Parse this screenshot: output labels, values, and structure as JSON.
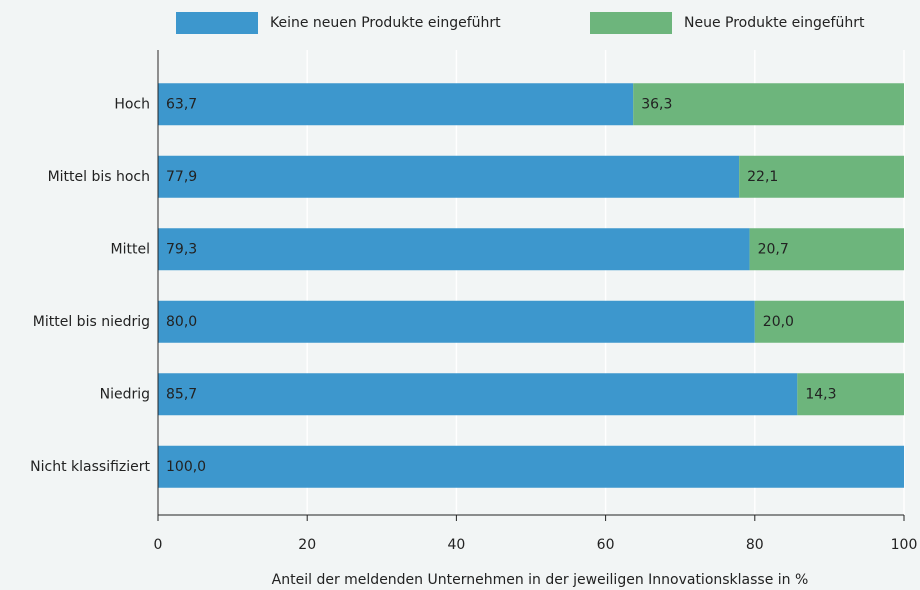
{
  "chart_data": {
    "type": "stacked-bar-horizontal",
    "x_label": "Anteil der meldenden Unternehmen in der jeweiligen Innovationsklasse in %",
    "categories": [
      "Hoch",
      "Mittel bis hoch",
      "Mittel",
      "Mittel bis niedrig",
      "Niedrig",
      "Nicht klassifiziert"
    ],
    "series": [
      {
        "name": "Keine neuen Produkte eingeführt",
        "color": "#3d97cd",
        "values": [
          63.7,
          77.9,
          79.3,
          80.0,
          85.7,
          100.0
        ],
        "value_labels": [
          "63,7",
          "77,9",
          "79,3",
          "80,0",
          "85,7",
          "100,0"
        ]
      },
      {
        "name": "Neue Produkte eingeführt",
        "color": "#6db57c",
        "values": [
          36.3,
          22.1,
          20.7,
          20.0,
          14.3,
          null
        ],
        "value_labels": [
          "36,3",
          "22,1",
          "20,7",
          "20,0",
          "14,3",
          null
        ]
      }
    ],
    "xlim": [
      0,
      100
    ],
    "xticks": [
      0,
      20,
      40,
      60,
      80,
      100
    ],
    "grid": true,
    "legend": "top"
  }
}
